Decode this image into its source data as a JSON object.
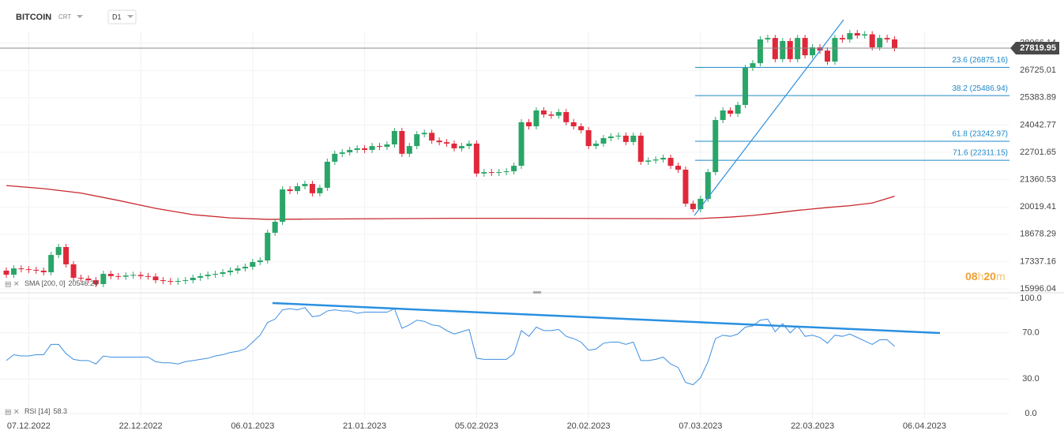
{
  "header": {
    "symbol": "BITCOIN",
    "type": "CRT",
    "timeframe": "D1"
  },
  "timer": [
    "08",
    "h",
    "20",
    "m"
  ],
  "chart_data": [
    {
      "type": "candlestick",
      "up_color": "#2aa568",
      "down_color": "#e0283a",
      "open": [
        16890,
        16690,
        17000,
        16960,
        16930,
        16890,
        16810,
        17660,
        18050,
        17200,
        16540,
        16500,
        16420,
        16230,
        16730,
        16620,
        16590,
        16650,
        16680,
        16620,
        16600,
        16420,
        16380,
        16340,
        16380,
        16420,
        16540,
        16620,
        16690,
        16730,
        16810,
        16890,
        17000,
        17080,
        17310,
        17390,
        18750,
        19290,
        20880,
        20800,
        21040,
        21150,
        20690,
        20960,
        22240,
        22630,
        22700,
        22820,
        22900,
        22820,
        23010,
        22970,
        23090,
        23750,
        22630,
        23010,
        23590,
        23660,
        23280,
        23200,
        23130,
        22900,
        23010,
        23130,
        21660,
        21730,
        21690,
        21730,
        21770,
        22040,
        24180,
        23980,
        24760,
        24560,
        24500,
        24680,
        24180,
        23980,
        23790,
        23010,
        23130,
        23400,
        23480,
        23520,
        23210,
        23520,
        22240,
        22300,
        22350,
        22430,
        22040,
        21850,
        20180,
        19910,
        20420,
        21730,
        24290,
        24760,
        24600,
        25030,
        26850,
        27080,
        28250,
        28320,
        27280,
        28170,
        27280,
        28320,
        27470,
        27860,
        27700,
        27160,
        28320,
        28250,
        28560,
        28440,
        28500,
        27860,
        28320,
        28250
      ],
      "close": [
        16690,
        17000,
        16960,
        16930,
        16890,
        16810,
        17660,
        18050,
        17200,
        16540,
        16500,
        16420,
        16230,
        16730,
        16620,
        16590,
        16650,
        16680,
        16620,
        16600,
        16420,
        16380,
        16340,
        16380,
        16420,
        16540,
        16620,
        16690,
        16730,
        16810,
        16890,
        17000,
        17080,
        17310,
        17390,
        18750,
        19290,
        20880,
        20800,
        21040,
        21150,
        20690,
        20960,
        22240,
        22630,
        22700,
        22820,
        22900,
        22820,
        23010,
        22970,
        23090,
        23750,
        22630,
        23010,
        23590,
        23660,
        23280,
        23200,
        23130,
        22900,
        23010,
        23130,
        21660,
        21730,
        21690,
        21730,
        21770,
        22040,
        24180,
        23980,
        24760,
        24560,
        24500,
        24680,
        24180,
        23980,
        23790,
        23010,
        23130,
        23400,
        23480,
        23520,
        23210,
        23520,
        22240,
        22300,
        22350,
        22430,
        22040,
        21850,
        20180,
        19910,
        20420,
        21730,
        24290,
        24760,
        24600,
        25030,
        26850,
        27080,
        28250,
        28320,
        27280,
        28170,
        27280,
        28320,
        27470,
        27860,
        27700,
        27160,
        28320,
        28250,
        28560,
        28440,
        28500,
        27860,
        28320,
        28250,
        27819.95
      ],
      "ylim": [
        15840,
        30185
      ],
      "yticks": [
        15996.04,
        17337.16,
        18678.29,
        20019.41,
        21360.53,
        22701.65,
        24042.77,
        25383.89,
        26725.01,
        28066.14
      ],
      "xticks": [
        {
          "value": 3,
          "label": "07.12.2022"
        },
        {
          "value": 18,
          "label": "22.12.2022"
        },
        {
          "value": 33,
          "label": "06.01.2023"
        },
        {
          "value": 48,
          "label": "21.01.2023"
        },
        {
          "value": 63,
          "label": "05.02.2023"
        },
        {
          "value": 78,
          "label": "20.02.2023"
        },
        {
          "value": 93,
          "label": "07.03.2023"
        },
        {
          "value": 108,
          "label": "22.03.2023"
        },
        {
          "value": 123,
          "label": "06.04.2023"
        }
      ],
      "sma": {
        "name": "SMA [200, 0]",
        "color": "#c8282d",
        "x": [
          0,
          5,
          10,
          15,
          20,
          25,
          30,
          35,
          40,
          50,
          60,
          70,
          80,
          90,
          93,
          97,
          100,
          103,
          106,
          110,
          113,
          116,
          119
        ],
        "values": [
          21070,
          20920,
          20700,
          20340,
          19950,
          19640,
          19480,
          19410,
          19420,
          19440,
          19460,
          19460,
          19450,
          19440,
          19450,
          19520,
          19600,
          19720,
          19850,
          19990,
          20080,
          20210,
          20546.24
        ]
      },
      "fib_levels": [
        {
          "value": 26875.16,
          "label": "23.6 (26875.16)"
        },
        {
          "value": 25486.94,
          "label": "38.2 (25486.94)"
        },
        {
          "value": 23242.97,
          "label": "61.8 (23242.97)"
        },
        {
          "value": 22311.15,
          "label": "71.6 (22311.15)"
        }
      ],
      "fib_color": "#1e88c8"
    },
    {
      "type": "line",
      "name": "RSI [14]",
      "color": "#3d8fe0",
      "values": [
        46,
        51,
        50,
        50,
        51,
        51,
        60,
        60,
        52,
        47,
        46,
        46,
        43,
        50,
        49,
        49,
        49,
        49,
        49,
        49,
        45,
        44,
        44,
        43,
        45,
        46,
        47,
        48,
        50,
        51,
        53,
        54,
        56,
        62,
        68,
        79,
        82,
        90,
        91,
        90,
        92,
        84,
        85,
        89,
        90,
        89,
        89,
        87,
        88,
        88,
        88,
        88,
        91,
        74,
        77,
        81,
        80,
        77,
        76,
        72,
        69,
        71,
        73,
        48,
        47,
        47,
        47,
        47,
        52,
        72,
        67,
        75,
        72,
        72,
        73,
        67,
        65,
        62,
        55,
        56,
        61,
        62,
        62,
        60,
        62,
        46,
        46,
        47,
        49,
        43,
        40,
        27,
        25,
        31,
        45,
        65,
        68,
        67,
        69,
        75,
        76,
        81,
        82,
        71,
        78,
        70,
        76,
        67,
        68,
        66,
        61,
        68,
        67,
        69,
        66,
        63,
        60,
        64,
        64,
        58.3
      ],
      "ylim": [
        0,
        100
      ],
      "yticks": [
        {
          "value": 0,
          "label": "0.0"
        },
        {
          "value": 30,
          "label": "30.0"
        },
        {
          "value": 70,
          "label": "70.0"
        },
        {
          "value": 100,
          "label": "100.0"
        }
      ]
    }
  ]
}
